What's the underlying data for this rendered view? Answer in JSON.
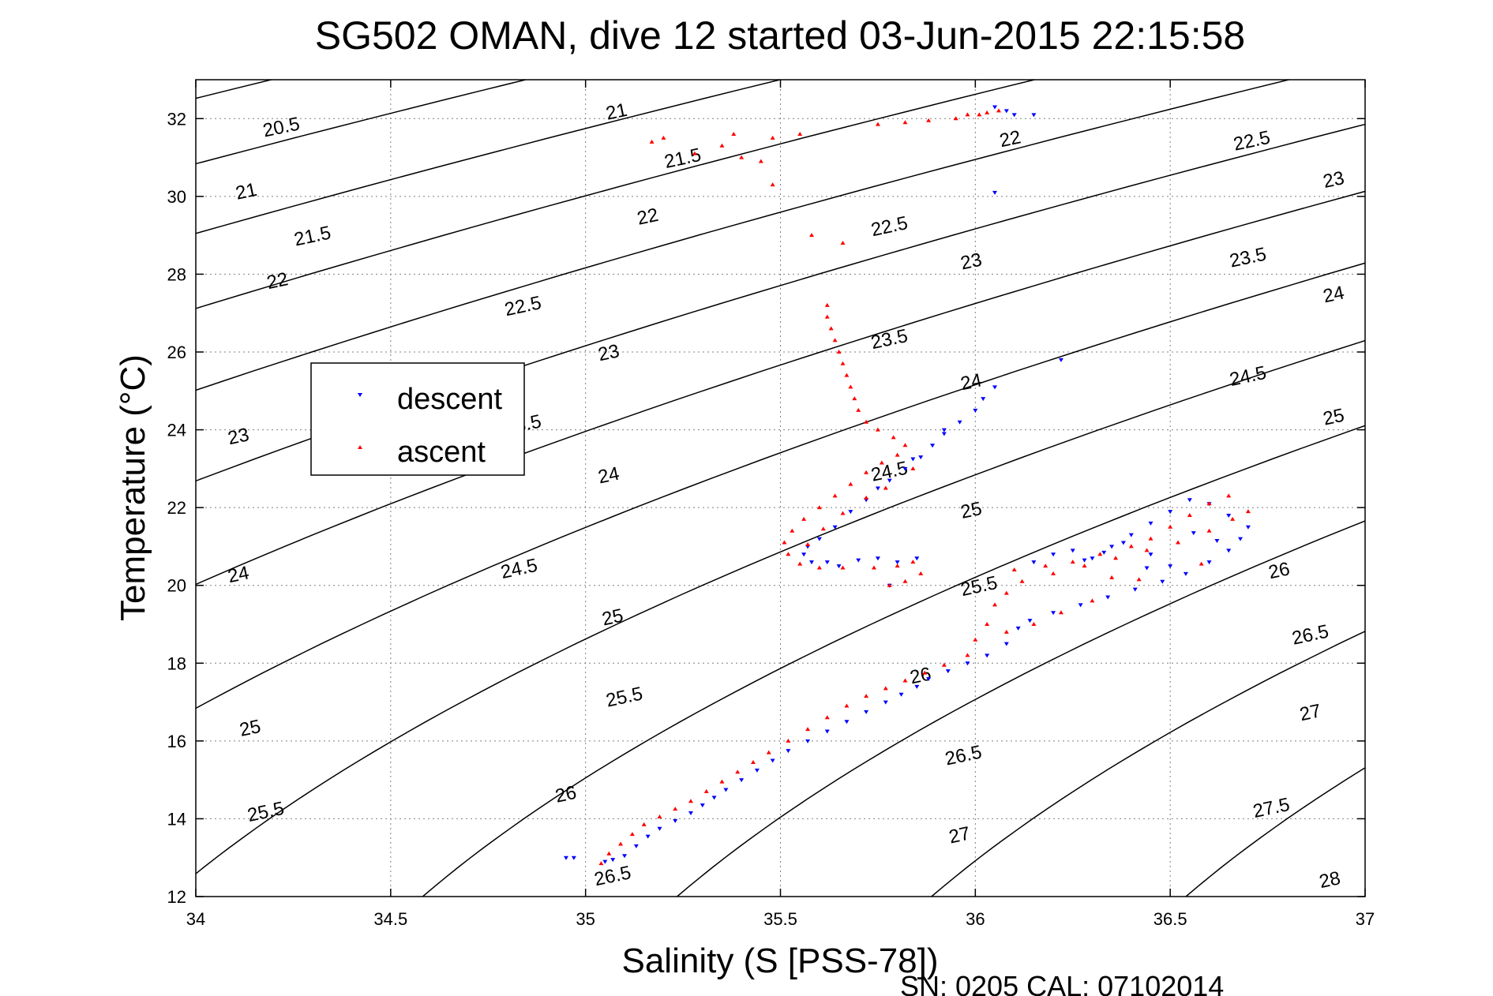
{
  "chart_data": {
    "type": "scatter",
    "title": "SG502 OMAN, dive 12 started 03-Jun-2015 22:15:58",
    "xlabel": "Salinity (S [PSS-78])",
    "ylabel": "Temperature (°C)",
    "footer": "SN: 0205  CAL: 07102014",
    "xlim": [
      34,
      37
    ],
    "ylim": [
      12,
      33
    ],
    "xticks": [
      34,
      34.5,
      35,
      35.5,
      36,
      36.5,
      37
    ],
    "yticks": [
      12,
      14,
      16,
      18,
      20,
      22,
      24,
      26,
      28,
      30,
      32
    ],
    "xtick_labels": [
      "34",
      "34.5",
      "35",
      "35.5",
      "36",
      "36.5",
      "37"
    ],
    "ytick_labels": [
      "12",
      "14",
      "16",
      "18",
      "20",
      "22",
      "24",
      "26",
      "28",
      "30",
      "32"
    ],
    "grid": true,
    "legend": {
      "placement": "upper-left",
      "entries": [
        "descent",
        "ascent"
      ]
    },
    "colors": {
      "descent": "#0000ff",
      "ascent": "#ff0000",
      "contour": "#000000",
      "grid": "#808080"
    },
    "contours": {
      "levels": [
        20.5,
        21,
        21.5,
        22,
        22.5,
        23,
        23.5,
        24,
        24.5,
        25,
        25.5,
        26,
        26.5,
        27,
        27.5,
        28
      ],
      "labels": [
        {
          "text": "20.5",
          "s": 34.22,
          "t": 31.75
        },
        {
          "text": "21",
          "s": 34.13,
          "t": 30.1
        },
        {
          "text": "21",
          "s": 35.08,
          "t": 32.15
        },
        {
          "text": "21.5",
          "s": 34.3,
          "t": 28.95
        },
        {
          "text": "21.5",
          "s": 35.25,
          "t": 30.95
        },
        {
          "text": "22",
          "s": 34.21,
          "t": 27.8
        },
        {
          "text": "22",
          "s": 35.16,
          "t": 29.45
        },
        {
          "text": "22",
          "s": 36.09,
          "t": 31.45
        },
        {
          "text": "22.5",
          "s": 34.84,
          "t": 27.15
        },
        {
          "text": "22.5",
          "s": 35.78,
          "t": 29.2
        },
        {
          "text": "22.5",
          "s": 36.71,
          "t": 31.4
        },
        {
          "text": "23",
          "s": 34.11,
          "t": 23.8
        },
        {
          "text": "23",
          "s": 35.06,
          "t": 25.95
        },
        {
          "text": "23",
          "s": 35.99,
          "t": 28.3
        },
        {
          "text": "23",
          "s": 36.92,
          "t": 30.4
        },
        {
          "text": "23.5",
          "s": 34.84,
          "t": 24.1
        },
        {
          "text": "23.5",
          "s": 35.78,
          "t": 26.3
        },
        {
          "text": "23.5",
          "s": 36.7,
          "t": 28.4
        },
        {
          "text": "24",
          "s": 34.11,
          "t": 20.25
        },
        {
          "text": "24",
          "s": 35.06,
          "t": 22.8
        },
        {
          "text": "24",
          "s": 35.99,
          "t": 25.2
        },
        {
          "text": "24",
          "s": 36.92,
          "t": 27.45
        },
        {
          "text": "24.5",
          "s": 34.83,
          "t": 20.4
        },
        {
          "text": "24.5",
          "s": 35.78,
          "t": 22.9
        },
        {
          "text": "24.5",
          "s": 36.7,
          "t": 25.35
        },
        {
          "text": "25",
          "s": 34.14,
          "t": 16.3
        },
        {
          "text": "25",
          "s": 35.07,
          "t": 19.15
        },
        {
          "text": "25",
          "s": 35.99,
          "t": 21.9
        },
        {
          "text": "25",
          "s": 36.92,
          "t": 24.3
        },
        {
          "text": "25.5",
          "s": 34.18,
          "t": 14.15
        },
        {
          "text": "25.5",
          "s": 35.1,
          "t": 17.1
        },
        {
          "text": "25.5",
          "s": 36.01,
          "t": 19.95
        },
        {
          "text": "26",
          "s": 34.95,
          "t": 14.6
        },
        {
          "text": "26",
          "s": 35.86,
          "t": 17.65
        },
        {
          "text": "26",
          "s": 36.78,
          "t": 20.35
        },
        {
          "text": "26.5",
          "s": 35.07,
          "t": 12.5
        },
        {
          "text": "26.5",
          "s": 35.97,
          "t": 15.6
        },
        {
          "text": "26.5",
          "s": 36.86,
          "t": 18.7
        },
        {
          "text": "27",
          "s": 35.96,
          "t": 13.55
        },
        {
          "text": "27",
          "s": 36.86,
          "t": 16.7
        },
        {
          "text": "27.5",
          "s": 36.76,
          "t": 14.25
        },
        {
          "text": "28",
          "s": 36.91,
          "t": 12.4
        }
      ]
    },
    "series": [
      {
        "name": "descent",
        "marker": "triangle-down",
        "points": [
          [
            34.95,
            13.0
          ],
          [
            34.97,
            13.0
          ],
          [
            35.05,
            12.9
          ],
          [
            35.07,
            12.95
          ],
          [
            35.1,
            13.05
          ],
          [
            35.13,
            13.3
          ],
          [
            35.16,
            13.55
          ],
          [
            35.19,
            13.75
          ],
          [
            35.23,
            13.95
          ],
          [
            35.27,
            14.15
          ],
          [
            35.3,
            14.35
          ],
          [
            35.33,
            14.55
          ],
          [
            35.36,
            14.75
          ],
          [
            35.4,
            15.0
          ],
          [
            35.44,
            15.25
          ],
          [
            35.48,
            15.5
          ],
          [
            35.52,
            15.75
          ],
          [
            35.57,
            16.0
          ],
          [
            35.62,
            16.25
          ],
          [
            35.67,
            16.5
          ],
          [
            35.72,
            16.75
          ],
          [
            35.77,
            17.0
          ],
          [
            35.81,
            17.2
          ],
          [
            35.85,
            17.4
          ],
          [
            35.88,
            17.6
          ],
          [
            35.93,
            17.8
          ],
          [
            35.98,
            18.0
          ],
          [
            36.03,
            18.2
          ],
          [
            36.08,
            18.5
          ],
          [
            36.11,
            18.9
          ],
          [
            36.14,
            19.1
          ],
          [
            36.2,
            19.3
          ],
          [
            36.27,
            19.5
          ],
          [
            36.34,
            19.7
          ],
          [
            36.41,
            19.9
          ],
          [
            36.48,
            20.1
          ],
          [
            36.54,
            20.3
          ],
          [
            36.6,
            20.6
          ],
          [
            36.65,
            20.9
          ],
          [
            36.68,
            21.2
          ],
          [
            36.7,
            21.5
          ],
          [
            36.65,
            21.8
          ],
          [
            36.6,
            22.1
          ],
          [
            36.55,
            22.2
          ],
          [
            36.5,
            21.9
          ],
          [
            36.45,
            21.6
          ],
          [
            36.4,
            21.3
          ],
          [
            36.35,
            21.0
          ],
          [
            36.3,
            20.7
          ],
          [
            36.25,
            20.9
          ],
          [
            36.2,
            20.8
          ],
          [
            36.15,
            20.6
          ],
          [
            36.45,
            20.8
          ],
          [
            36.5,
            20.5
          ],
          [
            36.38,
            21.1
          ],
          [
            36.33,
            20.85
          ],
          [
            36.44,
            20.45
          ],
          [
            36.56,
            21.35
          ],
          [
            36.62,
            21.15
          ],
          [
            36.28,
            20.65
          ],
          [
            35.85,
            20.7
          ],
          [
            35.8,
            20.6
          ],
          [
            35.75,
            20.7
          ],
          [
            35.7,
            20.65
          ],
          [
            35.65,
            20.5
          ],
          [
            35.62,
            20.6
          ],
          [
            35.58,
            20.6
          ],
          [
            35.56,
            20.8
          ],
          [
            35.57,
            21.0
          ],
          [
            35.6,
            21.2
          ],
          [
            35.64,
            21.5
          ],
          [
            35.68,
            21.9
          ],
          [
            35.72,
            22.2
          ],
          [
            35.75,
            22.5
          ],
          [
            35.78,
            22.7
          ],
          [
            35.82,
            23.0
          ],
          [
            35.86,
            23.3
          ],
          [
            35.89,
            23.6
          ],
          [
            35.92,
            23.9
          ],
          [
            35.96,
            24.2
          ],
          [
            36.0,
            24.5
          ],
          [
            36.02,
            24.8
          ],
          [
            36.05,
            25.1
          ],
          [
            36.05,
            30.1
          ],
          [
            36.05,
            32.3
          ],
          [
            36.08,
            32.2
          ],
          [
            36.1,
            32.1
          ],
          [
            36.15,
            32.1
          ],
          [
            36.22,
            25.8
          ],
          [
            35.78,
            20.0
          ],
          [
            35.92,
            24.0
          ],
          [
            35.84,
            23.25
          ]
        ]
      },
      {
        "name": "ascent",
        "marker": "triangle-up",
        "points": [
          [
            35.04,
            12.85
          ],
          [
            35.06,
            13.1
          ],
          [
            35.09,
            13.35
          ],
          [
            35.12,
            13.6
          ],
          [
            35.15,
            13.85
          ],
          [
            35.19,
            14.05
          ],
          [
            35.23,
            14.25
          ],
          [
            35.27,
            14.45
          ],
          [
            35.31,
            14.7
          ],
          [
            35.35,
            14.95
          ],
          [
            35.39,
            15.2
          ],
          [
            35.43,
            15.45
          ],
          [
            35.47,
            15.7
          ],
          [
            35.52,
            16.0
          ],
          [
            35.57,
            16.3
          ],
          [
            35.62,
            16.6
          ],
          [
            35.67,
            16.9
          ],
          [
            35.72,
            17.15
          ],
          [
            35.77,
            17.35
          ],
          [
            35.82,
            17.55
          ],
          [
            35.87,
            17.75
          ],
          [
            35.92,
            17.95
          ],
          [
            35.98,
            18.2
          ],
          [
            36.0,
            18.6
          ],
          [
            36.03,
            19.0
          ],
          [
            36.05,
            19.5
          ],
          [
            36.08,
            19.8
          ],
          [
            36.12,
            20.1
          ],
          [
            36.2,
            20.3
          ],
          [
            36.28,
            20.5
          ],
          [
            36.36,
            20.7
          ],
          [
            36.44,
            20.9
          ],
          [
            36.52,
            21.1
          ],
          [
            36.6,
            21.4
          ],
          [
            36.66,
            21.7
          ],
          [
            36.7,
            21.9
          ],
          [
            36.65,
            22.3
          ],
          [
            36.6,
            22.1
          ],
          [
            36.55,
            21.8
          ],
          [
            36.5,
            21.5
          ],
          [
            36.45,
            21.2
          ],
          [
            36.4,
            21.0
          ],
          [
            36.32,
            20.8
          ],
          [
            36.25,
            20.6
          ],
          [
            36.18,
            20.5
          ],
          [
            36.1,
            20.4
          ],
          [
            36.3,
            19.6
          ],
          [
            36.22,
            19.3
          ],
          [
            36.15,
            19.0
          ],
          [
            36.08,
            18.8
          ],
          [
            36.35,
            20.2
          ],
          [
            36.58,
            20.55
          ],
          [
            36.42,
            20.15
          ],
          [
            35.78,
            20.0
          ],
          [
            35.82,
            20.1
          ],
          [
            35.86,
            20.3
          ],
          [
            35.84,
            20.6
          ],
          [
            35.8,
            20.5
          ],
          [
            35.74,
            20.45
          ],
          [
            35.66,
            20.45
          ],
          [
            35.6,
            20.45
          ],
          [
            35.55,
            20.55
          ],
          [
            35.52,
            20.8
          ],
          [
            35.51,
            21.1
          ],
          [
            35.53,
            21.4
          ],
          [
            35.56,
            21.7
          ],
          [
            35.6,
            22.0
          ],
          [
            35.64,
            22.3
          ],
          [
            35.68,
            22.6
          ],
          [
            35.72,
            22.9
          ],
          [
            35.76,
            23.15
          ],
          [
            35.8,
            23.35
          ],
          [
            35.82,
            23.6
          ],
          [
            35.79,
            23.8
          ],
          [
            35.75,
            24.0
          ],
          [
            35.72,
            24.2
          ],
          [
            35.7,
            24.5
          ],
          [
            35.69,
            24.8
          ],
          [
            35.68,
            25.1
          ],
          [
            35.67,
            25.4
          ],
          [
            35.66,
            25.7
          ],
          [
            35.65,
            26.0
          ],
          [
            35.64,
            26.3
          ],
          [
            35.63,
            26.6
          ],
          [
            35.62,
            26.9
          ],
          [
            35.62,
            27.2
          ],
          [
            35.66,
            28.8
          ],
          [
            35.58,
            29.0
          ],
          [
            35.48,
            30.3
          ],
          [
            35.45,
            30.9
          ],
          [
            35.4,
            31.0
          ],
          [
            35.35,
            31.3
          ],
          [
            35.28,
            31.1
          ],
          [
            35.2,
            31.5
          ],
          [
            35.17,
            31.4
          ],
          [
            35.38,
            31.6
          ],
          [
            35.48,
            31.5
          ],
          [
            35.55,
            31.6
          ],
          [
            35.75,
            31.85
          ],
          [
            35.82,
            31.9
          ],
          [
            35.88,
            31.95
          ],
          [
            35.95,
            32.0
          ],
          [
            35.98,
            32.1
          ],
          [
            36.01,
            32.1
          ],
          [
            36.03,
            32.15
          ],
          [
            36.06,
            32.2
          ],
          [
            35.84,
            23.0
          ],
          [
            35.77,
            22.5
          ],
          [
            35.72,
            22.25
          ],
          [
            35.66,
            21.85
          ],
          [
            35.61,
            21.45
          ],
          [
            35.57,
            21.05
          ]
        ]
      }
    ]
  }
}
